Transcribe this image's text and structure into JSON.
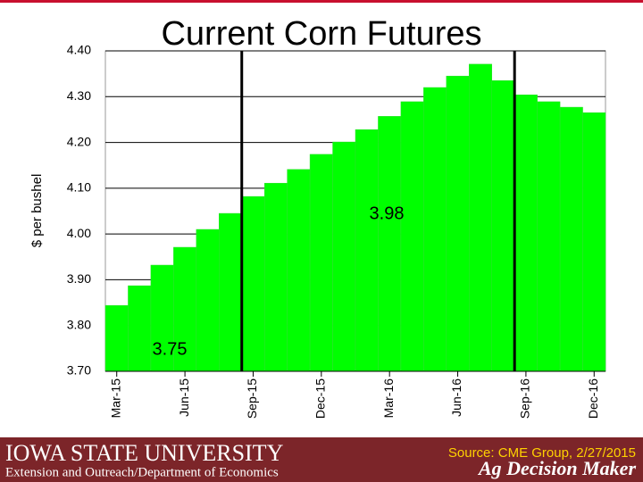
{
  "chart_data": {
    "type": "bar",
    "title": "Current Corn Futures",
    "y_label": "$ per bushel",
    "categories": [
      "Mar-15",
      null,
      null,
      "Jun-15",
      null,
      null,
      "Sep-15",
      null,
      null,
      "Dec-15",
      null,
      null,
      "Mar-16",
      null,
      null,
      "Jun-16",
      null,
      null,
      "Sep-16",
      null,
      null,
      "Dec-16"
    ],
    "values": [
      3.844,
      3.887,
      3.932,
      3.971,
      4.01,
      4.045,
      4.082,
      4.111,
      4.141,
      4.174,
      4.201,
      4.228,
      4.257,
      4.289,
      4.32,
      4.345,
      4.371,
      4.335,
      4.304,
      4.289,
      4.277,
      4.265
    ],
    "color": "#00ff00",
    "ylim": [
      3.7,
      4.4
    ],
    "yticks": [
      {
        "value": 3.7,
        "label": "3.70"
      },
      {
        "value": 3.8,
        "label": "3.80"
      },
      {
        "value": 3.9,
        "label": "3.90"
      },
      {
        "value": 4.0,
        "label": "4.00"
      },
      {
        "value": 4.1,
        "label": "4.10"
      },
      {
        "value": 4.2,
        "label": "4.20"
      },
      {
        "value": 4.3,
        "label": "4.30"
      },
      {
        "value": 4.4,
        "label": "4.40"
      }
    ],
    "grid": true,
    "annotations": [
      "3.98",
      "3.75"
    ]
  },
  "footer": {
    "university": "Iowa State University",
    "department": "Extension and Outreach/Department of Economics",
    "source": "Source: CME Group, 2/27/2015",
    "brand": "Ag Decision Maker"
  }
}
